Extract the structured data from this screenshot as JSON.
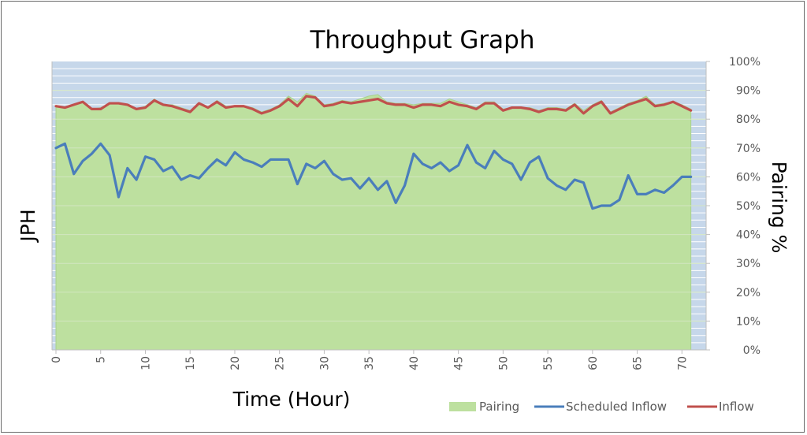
{
  "chart_data": {
    "type": "line",
    "title": "Throughput Graph",
    "xlabel": "Time (Hour)",
    "ylabel_left": "JPH",
    "ylabel_right": "Pairing %",
    "xlim": [
      0,
      72
    ],
    "ylim_right": [
      0,
      100
    ],
    "x_ticks": [
      "0",
      "5",
      "10",
      "15",
      "20",
      "25",
      "30",
      "35",
      "40",
      "45",
      "50",
      "55",
      "60",
      "65",
      "70"
    ],
    "y_right_ticks": [
      "0%",
      "10%",
      "20%",
      "30%",
      "40%",
      "50%",
      "60%",
      "70%",
      "80%",
      "90%",
      "100%"
    ],
    "legend_position": "bottom-right",
    "colors": {
      "plot_background": "#c6d7ea",
      "pairing_fill": "#bde09f",
      "pairing_edge": "#a9d18e",
      "scheduled_inflow": "#4a7ebb",
      "inflow": "#c0504d",
      "grid": "#ffffff"
    },
    "series": [
      {
        "name": "Pairing",
        "kind": "area",
        "x": [
          0,
          1,
          2,
          3,
          4,
          5,
          6,
          7,
          8,
          9,
          10,
          11,
          12,
          13,
          14,
          15,
          16,
          17,
          18,
          19,
          20,
          21,
          22,
          23,
          24,
          25,
          26,
          27,
          28,
          29,
          30,
          31,
          32,
          33,
          34,
          35,
          36,
          37,
          38,
          39,
          40,
          41,
          42,
          43,
          44,
          45,
          46,
          47,
          48,
          49,
          50,
          51,
          52,
          53,
          54,
          55,
          56,
          57,
          58,
          59,
          60,
          61,
          62,
          63,
          64,
          65,
          66,
          67,
          68,
          69,
          70,
          71
        ],
        "values": [
          84.5,
          84,
          85,
          86,
          83.5,
          84,
          85.5,
          85.5,
          85,
          83.5,
          84.5,
          87,
          85,
          85,
          84,
          83,
          85.5,
          84,
          86.5,
          84.5,
          84.5,
          84.5,
          84,
          82.5,
          83.5,
          85,
          88,
          86,
          89,
          88,
          85,
          85.5,
          86.5,
          86,
          87,
          88,
          88.5,
          86,
          85.5,
          85.5,
          85,
          85.5,
          85.5,
          85.5,
          87,
          86,
          85,
          84,
          86,
          86,
          83.5,
          84,
          84,
          84,
          83,
          84,
          84,
          83.5,
          85.5,
          83,
          85,
          86.5,
          82.5,
          84,
          85.5,
          86.5,
          88,
          85,
          85.5,
          86,
          85,
          83.5
        ]
      },
      {
        "name": "Scheduled Inflow",
        "kind": "line",
        "x": [
          0,
          1,
          2,
          3,
          4,
          5,
          6,
          7,
          8,
          9,
          10,
          11,
          12,
          13,
          14,
          15,
          16,
          17,
          18,
          19,
          20,
          21,
          22,
          23,
          24,
          25,
          26,
          27,
          28,
          29,
          30,
          31,
          32,
          33,
          34,
          35,
          36,
          37,
          38,
          39,
          40,
          41,
          42,
          43,
          44,
          45,
          46,
          47,
          48,
          49,
          50,
          51,
          52,
          53,
          54,
          55,
          56,
          57,
          58,
          59,
          60,
          61,
          62,
          63,
          64,
          65,
          66,
          67,
          68,
          69,
          70,
          71
        ],
        "values": [
          70,
          71.5,
          61,
          65.5,
          68,
          71.5,
          67.5,
          53,
          63,
          59,
          67,
          66,
          62,
          63.5,
          59,
          60.5,
          59.5,
          63,
          66,
          64,
          68.5,
          66,
          65,
          63.5,
          66,
          66,
          66,
          57.5,
          64.5,
          63,
          65.5,
          61,
          59,
          59.5,
          56,
          59.5,
          55.5,
          58.5,
          51,
          57,
          68,
          64.5,
          63,
          65,
          62,
          64,
          71,
          65,
          63,
          69,
          66,
          64.5,
          59,
          65,
          67,
          59.5,
          57,
          55.5,
          59,
          58,
          49,
          50,
          50,
          52,
          60.5,
          54,
          54,
          55.5,
          54.5,
          57,
          60,
          60
        ]
      },
      {
        "name": "Inflow",
        "kind": "line",
        "x": [
          0,
          1,
          2,
          3,
          4,
          5,
          6,
          7,
          8,
          9,
          10,
          11,
          12,
          13,
          14,
          15,
          16,
          17,
          18,
          19,
          20,
          21,
          22,
          23,
          24,
          25,
          26,
          27,
          28,
          29,
          30,
          31,
          32,
          33,
          34,
          35,
          36,
          37,
          38,
          39,
          40,
          41,
          42,
          43,
          44,
          45,
          46,
          47,
          48,
          49,
          50,
          51,
          52,
          53,
          54,
          55,
          56,
          57,
          58,
          59,
          60,
          61,
          62,
          63,
          64,
          65,
          66,
          67,
          68,
          69,
          70,
          71
        ],
        "values": [
          84.5,
          84,
          85,
          86,
          83.5,
          83.5,
          85.5,
          85.5,
          85,
          83.5,
          84,
          86.5,
          85,
          84.5,
          83.5,
          82.5,
          85.5,
          84,
          86,
          84,
          84.5,
          84.5,
          83.5,
          82,
          83,
          84.5,
          87,
          84.5,
          88,
          87.5,
          84.5,
          85,
          86,
          85.5,
          86,
          86.5,
          87,
          85.5,
          85,
          85,
          84,
          85,
          85,
          84.5,
          86,
          85,
          84.5,
          83.5,
          85.5,
          85.5,
          83,
          84,
          84,
          83.5,
          82.5,
          83.5,
          83.5,
          83,
          85,
          82,
          84.5,
          86,
          82,
          83.5,
          85,
          86,
          87,
          84.5,
          85,
          86,
          84.5,
          83
        ]
      }
    ]
  }
}
